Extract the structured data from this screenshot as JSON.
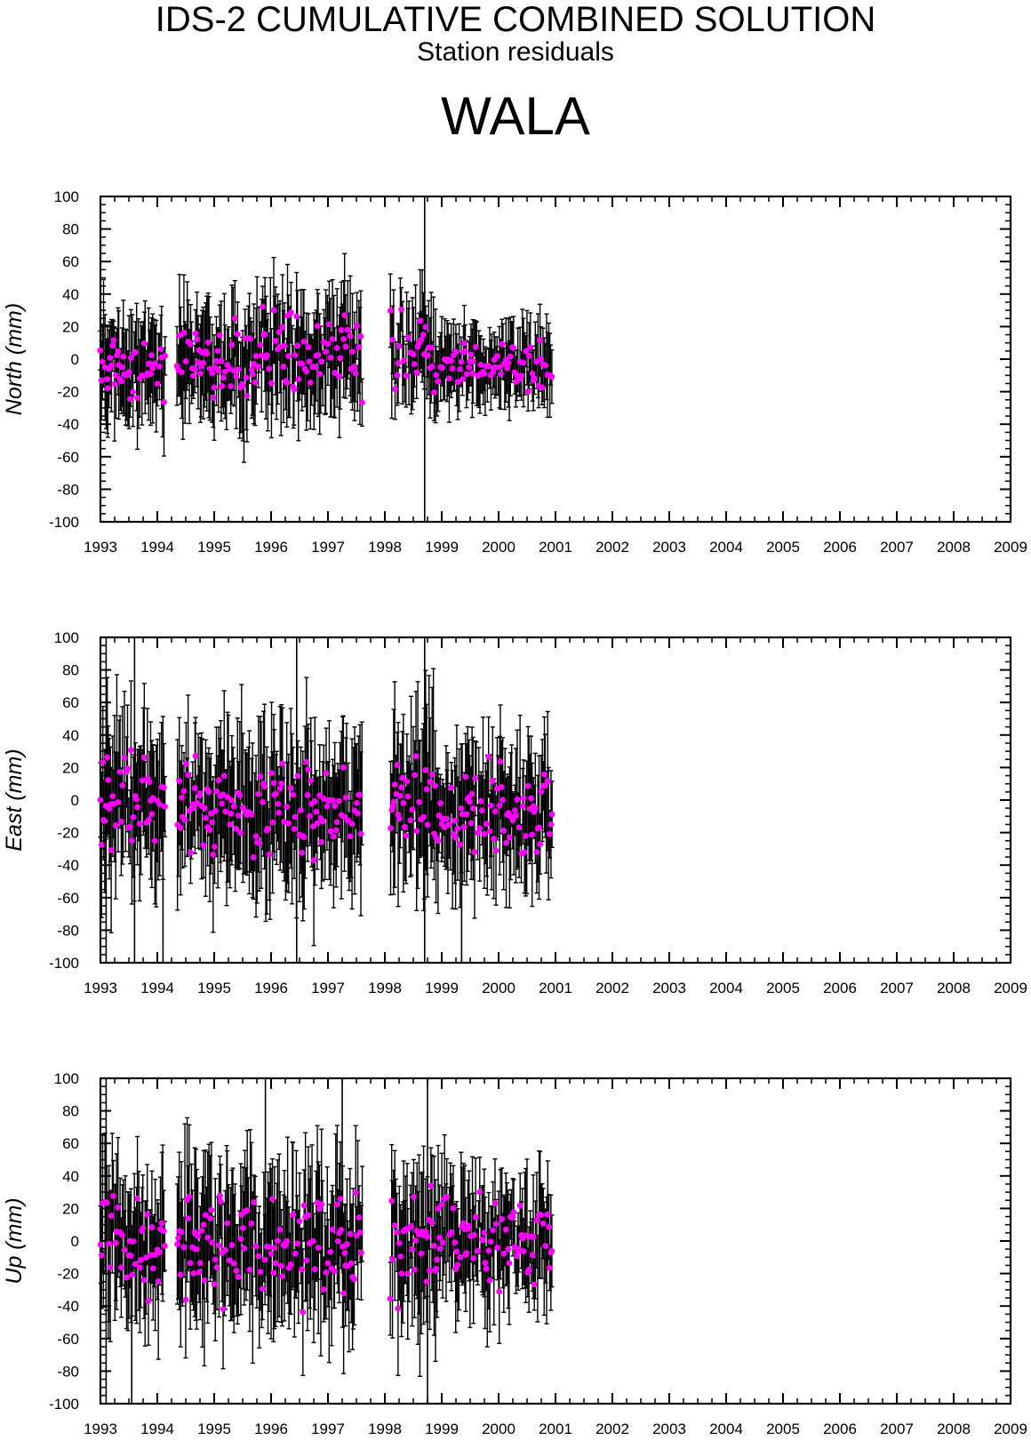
{
  "header": {
    "title": "IDS-2 CUMULATIVE COMBINED SOLUTION",
    "subtitle": "Station residuals",
    "station": "WALA"
  },
  "colors": {
    "marker": "#ff00ff",
    "errorbar": "#000000",
    "frame": "#000000"
  },
  "chart_data": [
    {
      "type": "scatter",
      "component": "north",
      "ylabel": "North (mm)",
      "xlim": [
        1993,
        2009
      ],
      "ylim": [
        -100,
        100
      ],
      "xticks": [
        "1993",
        "1994",
        "1995",
        "1996",
        "1997",
        "1998",
        "1999",
        "2000",
        "2001",
        "2002",
        "2003",
        "2004",
        "2005",
        "2006",
        "2007",
        "2008",
        "2009"
      ],
      "yticks": [
        "100",
        "80",
        "60",
        "40",
        "20",
        "0",
        "-20",
        "-40",
        "-60",
        "-80",
        "-100"
      ],
      "error_bars": true,
      "grid": false,
      "segments": [
        {
          "start": 1993.0,
          "end": 1994.15,
          "center": -5,
          "spread": 13,
          "err": 22
        },
        {
          "start": 1994.35,
          "end": 1997.6,
          "center": 3,
          "spread": 17,
          "err": 24
        },
        {
          "start": 1998.1,
          "end": 1998.9,
          "center": 3,
          "spread": 16,
          "err": 22
        },
        {
          "start": 1998.9,
          "end": 2000.95,
          "center": -5,
          "spread": 11,
          "err": 17
        }
      ],
      "spikes": [
        {
          "x": 1998.7,
          "y_low": -100,
          "y_high": 100
        }
      ]
    },
    {
      "type": "scatter",
      "component": "east",
      "ylabel": "East (mm)",
      "xlim": [
        1993,
        2009
      ],
      "ylim": [
        -100,
        100
      ],
      "xticks": [
        "1993",
        "1994",
        "1995",
        "1996",
        "1997",
        "1998",
        "1999",
        "2000",
        "2001",
        "2002",
        "2003",
        "2004",
        "2005",
        "2006",
        "2007",
        "2008",
        "2009"
      ],
      "yticks": [
        "100",
        "80",
        "60",
        "40",
        "20",
        "0",
        "-20",
        "-40",
        "-60",
        "-80",
        "-100"
      ],
      "error_bars": true,
      "grid": false,
      "segments": [
        {
          "start": 1993.0,
          "end": 1994.15,
          "center": 0,
          "spread": 22,
          "err": 32
        },
        {
          "start": 1994.35,
          "end": 1997.6,
          "center": -5,
          "spread": 20,
          "err": 33
        },
        {
          "start": 1998.1,
          "end": 1998.9,
          "center": 0,
          "spread": 22,
          "err": 40
        },
        {
          "start": 1998.9,
          "end": 2000.95,
          "center": -6,
          "spread": 18,
          "err": 28
        }
      ],
      "spikes": [
        {
          "x": 1993.1,
          "y_low": -100,
          "y_high": 100
        },
        {
          "x": 1993.6,
          "y_low": -100,
          "y_high": 100
        },
        {
          "x": 1994.1,
          "y_low": -100,
          "y_high": 20
        },
        {
          "x": 1996.45,
          "y_low": -100,
          "y_high": 100
        },
        {
          "x": 1998.7,
          "y_low": -100,
          "y_high": 100
        },
        {
          "x": 1999.35,
          "y_low": -100,
          "y_high": 20
        }
      ]
    },
    {
      "type": "scatter",
      "component": "up",
      "ylabel": "Up (mm)",
      "xlim": [
        1993,
        2009
      ],
      "ylim": [
        -100,
        100
      ],
      "xticks": [
        "1993",
        "1994",
        "1995",
        "1996",
        "1997",
        "1998",
        "1999",
        "2000",
        "2001",
        "2002",
        "2003",
        "2004",
        "2005",
        "2006",
        "2007",
        "2008",
        "2009"
      ],
      "yticks": [
        "100",
        "80",
        "60",
        "40",
        "20",
        "0",
        "-20",
        "-40",
        "-60",
        "-80",
        "-100"
      ],
      "error_bars": true,
      "grid": false,
      "segments": [
        {
          "start": 1993.0,
          "end": 1994.15,
          "center": -3,
          "spread": 22,
          "err": 30
        },
        {
          "start": 1994.35,
          "end": 1997.6,
          "center": -3,
          "spread": 22,
          "err": 33
        },
        {
          "start": 1998.1,
          "end": 1998.9,
          "center": -5,
          "spread": 24,
          "err": 35
        },
        {
          "start": 1998.9,
          "end": 2000.95,
          "center": -2,
          "spread": 18,
          "err": 26
        }
      ],
      "spikes": [
        {
          "x": 1993.1,
          "y_low": -100,
          "y_high": 100
        },
        {
          "x": 1993.55,
          "y_low": -100,
          "y_high": 10
        },
        {
          "x": 1995.9,
          "y_low": -20,
          "y_high": 100
        },
        {
          "x": 1997.25,
          "y_low": -20,
          "y_high": 100
        },
        {
          "x": 1998.75,
          "y_low": -100,
          "y_high": 100
        }
      ]
    }
  ]
}
